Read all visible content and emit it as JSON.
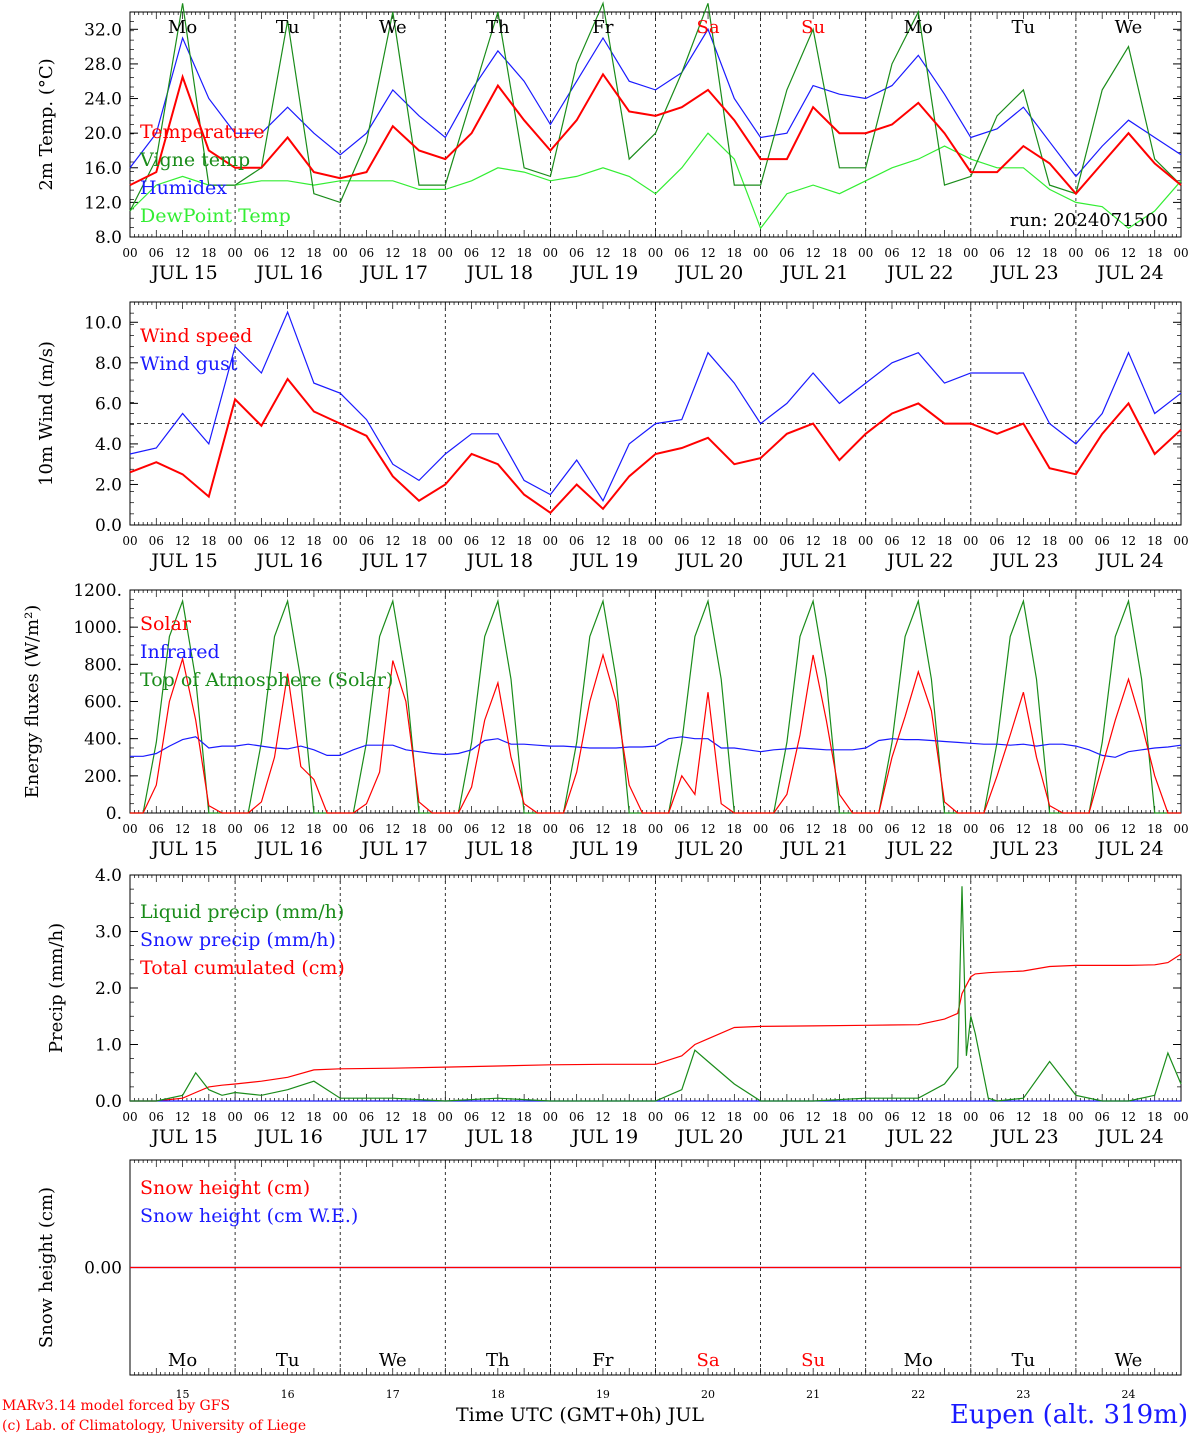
{
  "footer": {
    "credit_line1": "MARv3.14 model forced by GFS",
    "credit_line2": "(c) Lab. of Climatology, University of Liege",
    "x_title": "Time UTC (GMT+0h) JUL",
    "location": "Eupen (alt. 319m)"
  },
  "colors": {
    "red": "#ff0000",
    "green": "#1a8c1a",
    "blue": "#1a1aff",
    "lightgreen": "#33ee33",
    "weekend": "#ff0000",
    "purple": "#7a2a9a"
  },
  "hour_ticks": [
    "00",
    "06",
    "12",
    "18"
  ],
  "date_labels": [
    "JUL 15",
    "JUL 16",
    "JUL 17",
    "JUL 18",
    "JUL 19",
    "JUL 20",
    "JUL 21",
    "JUL 22",
    "JUL 23",
    "JUL 24"
  ],
  "weekdays": [
    "Mo",
    "Tu",
    "We",
    "Th",
    "Fr",
    "Sa",
    "Su",
    "Mo",
    "Tu",
    "We"
  ],
  "weekend_flags": [
    false,
    false,
    false,
    false,
    false,
    true,
    true,
    false,
    false,
    false
  ],
  "day_numbers": [
    "15",
    "16",
    "17",
    "18",
    "19",
    "20",
    "21",
    "22",
    "23",
    "24"
  ],
  "chart_data": [
    {
      "type": "line",
      "ylabel": "2m Temp. (°C)",
      "ylim": [
        8.0,
        34.0
      ],
      "yticks": [
        "8.0",
        "12.0",
        "16.0",
        "20.0",
        "24.0",
        "28.0",
        "32.0"
      ],
      "annotation": "run: 2024071500",
      "x_unit": "hours since JUL 15 00 UTC",
      "x": [
        0,
        6,
        12,
        18,
        24,
        30,
        36,
        42,
        48,
        54,
        60,
        66,
        72,
        78,
        84,
        90,
        96,
        102,
        108,
        114,
        120,
        126,
        132,
        138,
        144,
        150,
        156,
        162,
        168,
        174,
        180,
        186,
        192,
        198,
        204,
        210,
        216,
        222,
        228,
        234,
        240
      ],
      "series": [
        {
          "name": "Temperature",
          "color": "#ff0000",
          "values": [
            14.0,
            15.5,
            26.5,
            18.0,
            16.0,
            16.0,
            19.5,
            15.5,
            14.8,
            15.5,
            20.8,
            18.0,
            17.0,
            20.0,
            25.5,
            21.5,
            18.0,
            21.5,
            26.8,
            22.5,
            22.0,
            23.0,
            25.0,
            21.5,
            17.0,
            17.0,
            23.0,
            20.0,
            20.0,
            21.0,
            23.5,
            20.0,
            15.5,
            15.5,
            18.5,
            16.5,
            13.0,
            16.5,
            20.0,
            16.5,
            14.0
          ]
        },
        {
          "name": "Vigne temp",
          "color": "#1a8c1a",
          "values": [
            11.0,
            17.0,
            35.0,
            14.0,
            14.0,
            16.0,
            33.0,
            13.0,
            12.0,
            19.0,
            34.0,
            14.0,
            14.0,
            24.0,
            34.0,
            16.0,
            15.0,
            28.0,
            35.0,
            17.0,
            20.0,
            27.0,
            35.0,
            14.0,
            14.0,
            25.0,
            32.0,
            16.0,
            16.0,
            28.0,
            34.0,
            14.0,
            15.0,
            22.0,
            25.0,
            14.0,
            13.0,
            25.0,
            30.0,
            17.0,
            14.0
          ]
        },
        {
          "name": "Humidex",
          "color": "#1a1aff",
          "values": [
            16.0,
            20.0,
            31.0,
            24.0,
            20.0,
            20.0,
            23.0,
            20.0,
            17.5,
            20.0,
            25.0,
            22.0,
            19.5,
            25.0,
            29.5,
            26.0,
            21.0,
            26.0,
            31.0,
            26.0,
            25.0,
            27.0,
            32.0,
            24.0,
            19.5,
            20.0,
            25.5,
            24.5,
            24.0,
            25.5,
            29.0,
            24.5,
            19.5,
            20.5,
            23.0,
            19.0,
            15.0,
            18.5,
            21.5,
            19.5,
            17.5
          ]
        },
        {
          "name": "DewPoint Temp",
          "color": "#33ee33",
          "values": [
            11.0,
            14.0,
            15.0,
            14.0,
            14.0,
            14.5,
            14.5,
            14.0,
            14.5,
            14.5,
            14.5,
            13.5,
            13.5,
            14.5,
            16.0,
            15.5,
            14.5,
            15.0,
            16.0,
            15.0,
            13.0,
            16.0,
            20.0,
            17.0,
            9.0,
            13.0,
            14.0,
            13.0,
            14.5,
            16.0,
            17.0,
            18.5,
            17.0,
            16.0,
            16.0,
            13.5,
            12.0,
            11.5,
            9.0,
            11.0,
            14.5
          ]
        }
      ]
    },
    {
      "type": "line",
      "ylabel": "10m Wind (m/s)",
      "ylim": [
        0.0,
        11.0
      ],
      "yticks": [
        "0.0",
        "2.0",
        "4.0",
        "6.0",
        "8.0",
        "10.0"
      ],
      "ref_line": 5.0,
      "x_unit": "hours since JUL 15 00 UTC",
      "x": [
        0,
        6,
        12,
        18,
        24,
        30,
        36,
        42,
        48,
        54,
        60,
        66,
        72,
        78,
        84,
        90,
        96,
        102,
        108,
        114,
        120,
        126,
        132,
        138,
        144,
        150,
        156,
        162,
        168,
        174,
        180,
        186,
        192,
        198,
        204,
        210,
        216,
        222,
        228,
        234,
        240
      ],
      "series": [
        {
          "name": "Wind speed",
          "color": "#ff0000",
          "values": [
            2.6,
            3.1,
            2.5,
            1.4,
            6.2,
            4.9,
            7.2,
            5.6,
            5.0,
            4.4,
            2.4,
            1.2,
            2.0,
            3.5,
            3.0,
            1.5,
            0.6,
            2.0,
            0.8,
            2.4,
            3.5,
            3.8,
            4.3,
            3.0,
            3.3,
            4.5,
            5.0,
            3.2,
            4.5,
            5.5,
            6.0,
            5.0,
            5.0,
            4.5,
            5.0,
            2.8,
            2.5,
            4.5,
            6.0,
            3.5,
            4.7
          ]
        },
        {
          "name": "Wind gust",
          "color": "#1a1aff",
          "values": [
            3.5,
            3.8,
            5.5,
            4.0,
            8.8,
            7.5,
            10.5,
            7.0,
            6.5,
            5.2,
            3.0,
            2.2,
            3.5,
            4.5,
            4.5,
            2.2,
            1.5,
            3.2,
            1.2,
            4.0,
            5.0,
            5.2,
            8.5,
            7.0,
            5.0,
            6.0,
            7.5,
            6.0,
            7.0,
            8.0,
            8.5,
            7.0,
            7.5,
            7.5,
            7.5,
            5.0,
            4.0,
            5.5,
            8.5,
            5.5,
            6.5
          ]
        }
      ]
    },
    {
      "type": "line",
      "ylabel": "Energy fluxes (W/m²)",
      "ylim": [
        0,
        1200
      ],
      "yticks": [
        "0.",
        "200.",
        "400.",
        "600.",
        "800.",
        "1000.",
        "1200."
      ],
      "x_unit": "hours since JUL 15 00 UTC",
      "x": [
        0,
        3,
        6,
        9,
        12,
        15,
        18,
        21,
        24,
        27,
        30,
        33,
        36,
        39,
        42,
        45,
        48,
        51,
        54,
        57,
        60,
        63,
        66,
        69,
        72,
        75,
        78,
        81,
        84,
        87,
        90,
        93,
        96,
        99,
        102,
        105,
        108,
        111,
        114,
        117,
        120,
        123,
        126,
        129,
        132,
        135,
        138,
        141,
        144,
        147,
        150,
        153,
        156,
        159,
        162,
        165,
        168,
        171,
        174,
        177,
        180,
        183,
        186,
        189,
        192,
        195,
        198,
        201,
        204,
        207,
        210,
        213,
        216,
        219,
        222,
        225,
        228,
        231,
        234,
        237,
        240
      ],
      "series": [
        {
          "name": "Solar",
          "color": "#ff0000",
          "values": [
            0,
            0,
            150,
            600,
            830,
            500,
            40,
            0,
            0,
            0,
            60,
            300,
            750,
            250,
            180,
            0,
            0,
            0,
            50,
            220,
            820,
            600,
            60,
            0,
            0,
            0,
            140,
            500,
            700,
            300,
            50,
            0,
            0,
            0,
            220,
            600,
            850,
            600,
            150,
            0,
            0,
            0,
            200,
            100,
            650,
            50,
            0,
            0,
            0,
            0,
            100,
            420,
            850,
            500,
            100,
            0,
            0,
            0,
            300,
            520,
            760,
            550,
            60,
            0,
            0,
            0,
            200,
            420,
            650,
            300,
            40,
            0,
            0,
            0,
            250,
            500,
            720,
            480,
            200,
            0,
            0
          ]
        },
        {
          "name": "Infrared",
          "color": "#1a1aff",
          "values": [
            305,
            305,
            320,
            360,
            395,
            410,
            350,
            360,
            360,
            370,
            360,
            350,
            345,
            360,
            340,
            310,
            310,
            340,
            365,
            365,
            365,
            340,
            330,
            320,
            315,
            320,
            340,
            390,
            400,
            370,
            370,
            365,
            360,
            360,
            355,
            350,
            350,
            350,
            355,
            355,
            360,
            400,
            410,
            400,
            400,
            350,
            350,
            340,
            330,
            340,
            345,
            350,
            345,
            340,
            340,
            340,
            350,
            390,
            400,
            395,
            395,
            390,
            385,
            380,
            375,
            370,
            370,
            365,
            370,
            360,
            370,
            370,
            360,
            340,
            310,
            300,
            330,
            340,
            350,
            355,
            365
          ]
        },
        {
          "name": "Top of Atmosphere (Solar)",
          "color": "#1a8c1a",
          "values": [
            0,
            0,
            380,
            950,
            1140,
            720,
            0,
            0,
            0,
            0,
            380,
            950,
            1140,
            720,
            0,
            0,
            0,
            0,
            380,
            950,
            1140,
            720,
            0,
            0,
            0,
            0,
            380,
            950,
            1140,
            720,
            0,
            0,
            0,
            0,
            380,
            950,
            1140,
            720,
            0,
            0,
            0,
            0,
            380,
            950,
            1140,
            720,
            0,
            0,
            0,
            0,
            380,
            950,
            1140,
            720,
            0,
            0,
            0,
            0,
            380,
            950,
            1140,
            720,
            0,
            0,
            0,
            0,
            380,
            950,
            1140,
            720,
            0,
            0,
            0,
            0,
            380,
            950,
            1140,
            720,
            0,
            0,
            0
          ]
        }
      ]
    },
    {
      "type": "line",
      "ylabel": "Precip (mm/h)",
      "ylim": [
        0.0,
        4.0
      ],
      "yticks": [
        "0.0",
        "1.0",
        "2.0",
        "3.0",
        "4.0"
      ],
      "x_unit": "hours since JUL 15 00 UTC",
      "x": [
        0,
        6,
        12,
        15,
        18,
        21,
        24,
        30,
        36,
        42,
        48,
        60,
        72,
        84,
        96,
        108,
        120,
        126,
        129,
        132,
        138,
        144,
        156,
        168,
        180,
        186,
        189,
        190,
        191,
        192,
        193,
        196,
        198,
        204,
        210,
        216,
        222,
        228,
        234,
        237,
        240
      ],
      "series": [
        {
          "name": "Liquid precip (mm/h)",
          "color": "#1a8c1a",
          "values": [
            0,
            0,
            0.1,
            0.5,
            0.2,
            0.1,
            0.15,
            0.1,
            0.2,
            0.35,
            0.05,
            0.05,
            0,
            0.05,
            0,
            0,
            0,
            0.2,
            0.9,
            0.7,
            0.3,
            0,
            0,
            0.05,
            0.05,
            0.3,
            0.6,
            3.8,
            0.8,
            1.5,
            1.2,
            0.05,
            0,
            0.05,
            0.7,
            0.1,
            0,
            0,
            0.1,
            0.85,
            0.3
          ]
        },
        {
          "name": "Snow precip (mm/h)",
          "color": "#1a1aff",
          "values": [
            0,
            0,
            0,
            0,
            0,
            0,
            0,
            0,
            0,
            0,
            0,
            0,
            0,
            0,
            0,
            0,
            0,
            0,
            0,
            0,
            0,
            0,
            0,
            0,
            0,
            0,
            0,
            0,
            0,
            0,
            0,
            0,
            0,
            0,
            0,
            0,
            0,
            0,
            0,
            0,
            0
          ]
        },
        {
          "name": "Total cumulated (cm)",
          "color": "#ff0000",
          "values": [
            0,
            0,
            0.05,
            0.15,
            0.25,
            0.28,
            0.3,
            0.35,
            0.42,
            0.55,
            0.57,
            0.58,
            0.6,
            0.62,
            0.64,
            0.65,
            0.65,
            0.8,
            1.0,
            1.1,
            1.3,
            1.32,
            1.33,
            1.34,
            1.35,
            1.45,
            1.55,
            1.9,
            2.05,
            2.2,
            2.25,
            2.27,
            2.28,
            2.3,
            2.38,
            2.4,
            2.4,
            2.4,
            2.41,
            2.45,
            2.6
          ]
        }
      ]
    },
    {
      "type": "line",
      "ylabel": "Snow height (cm)",
      "ylim": [
        -1.0,
        1.0
      ],
      "yticks": [
        "0.00"
      ],
      "x_unit": "hours since JUL 15 00 UTC",
      "x": [
        0,
        240
      ],
      "series": [
        {
          "name": "Snow height (cm)",
          "color": "#ff0000",
          "values": [
            0.0,
            0.0
          ]
        },
        {
          "name": "Snow height (cm W.E.)",
          "color": "#1a1aff",
          "values": [
            0.0,
            0.0
          ]
        }
      ]
    }
  ]
}
